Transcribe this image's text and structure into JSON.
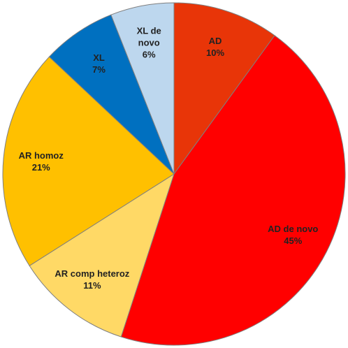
{
  "chart_data": {
    "type": "pie",
    "categories": [
      "AD",
      "AD de novo",
      "AR comp heteroz",
      "AR homoz",
      "XL",
      "XL de novo"
    ],
    "values": [
      10,
      45,
      11,
      21,
      7,
      6
    ],
    "value_labels": [
      "10%",
      "45%",
      "11%",
      "21%",
      "7%",
      "6%"
    ],
    "colors": [
      "#e83508",
      "#ff0000",
      "#ffd966",
      "#ffc000",
      "#0070c0",
      "#bdd7ee"
    ]
  }
}
